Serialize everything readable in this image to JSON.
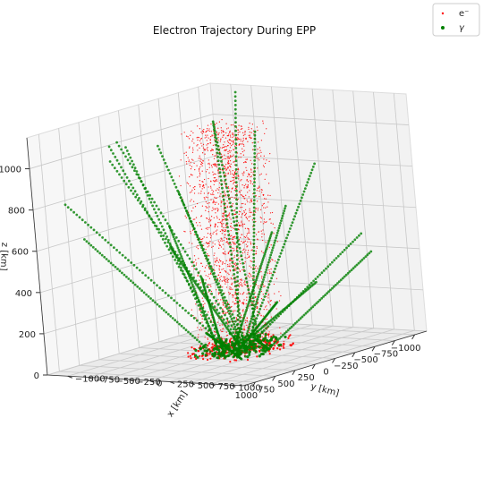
{
  "chart_data": {
    "type": "scatter",
    "projection": "3d",
    "title": "Electron Trajectory During EPP",
    "xlabel": "x [km]",
    "ylabel": "y [km]",
    "zlabel": "z [km]",
    "xlim": [
      -1250,
      1150
    ],
    "ylim": [
      -1150,
      1150
    ],
    "zlim": [
      0,
      1150
    ],
    "x_ticks": [
      -1000,
      -750,
      -500,
      -250,
      0,
      250,
      500,
      750,
      1000
    ],
    "y_ticks": [
      -1000,
      -750,
      -500,
      -250,
      0,
      250,
      500,
      750,
      1000
    ],
    "z_ticks": [
      0,
      200,
      400,
      600,
      800,
      1000
    ],
    "x_tick_labels": [
      "−1000",
      "−750",
      "−500",
      "−250",
      "0",
      "250",
      "500",
      "750",
      "1000"
    ],
    "y_tick_labels": [
      "−1000",
      "−750",
      "−500",
      "−250",
      "0",
      "250",
      "500",
      "750",
      "1000"
    ],
    "z_tick_labels": [
      "0",
      "200",
      "400",
      "600",
      "800",
      "1000"
    ],
    "grid": true,
    "legend_position": "top-right",
    "series": [
      {
        "name": "e⁻",
        "color": "#ff0000",
        "marker": "point",
        "cloud": {
          "x_range": [
            -300,
            300
          ],
          "y_range": [
            -300,
            300
          ],
          "z_range": [
            30,
            1100
          ],
          "n_points": 1800
        },
        "base_cluster": {
          "x_range": [
            -350,
            350
          ],
          "y_range": [
            -350,
            350
          ],
          "z_range": [
            0,
            60
          ],
          "n_points": 260
        }
      },
      {
        "name": "γ",
        "color": "#008000",
        "marker": "circle",
        "rays": [
          {
            "start": [
              -150,
              -120,
              0
            ],
            "end": [
              -900,
              -1100,
              1120
            ]
          },
          {
            "start": [
              -50,
              -200,
              0
            ],
            "end": [
              -500,
              -900,
              960
            ]
          },
          {
            "start": [
              100,
              -150,
              0
            ],
            "end": [
              -700,
              -600,
              1030
            ]
          },
          {
            "start": [
              -200,
              50,
              0
            ],
            "end": [
              -1000,
              200,
              1000
            ]
          },
          {
            "start": [
              50,
              100,
              0
            ],
            "end": [
              -1100,
              900,
              800
            ]
          },
          {
            "start": [
              -100,
              200,
              0
            ],
            "end": [
              -800,
              1000,
              650
            ]
          },
          {
            "start": [
              150,
              50,
              0
            ],
            "end": [
              -300,
              1100,
              1050
            ]
          },
          {
            "start": [
              0,
              0,
              0
            ],
            "end": [
              -100,
              -800,
              620
            ]
          },
          {
            "start": [
              -150,
              -50,
              0
            ],
            "end": [
              -500,
              -1000,
              460
            ]
          },
          {
            "start": [
              200,
              -100,
              0
            ],
            "end": [
              600,
              -1100,
              380
            ]
          },
          {
            "start": [
              100,
              150,
              0
            ],
            "end": [
              900,
              -700,
              520
            ]
          },
          {
            "start": [
              -50,
              100,
              0
            ],
            "end": [
              1100,
              100,
              380
            ]
          },
          {
            "start": [
              150,
              -200,
              0
            ],
            "end": [
              1000,
              800,
              180
            ]
          },
          {
            "start": [
              200,
              200,
              0
            ],
            "end": [
              700,
              1100,
              240
            ]
          },
          {
            "start": [
              -200,
              -200,
              0
            ],
            "end": [
              300,
              1050,
              640
            ]
          },
          {
            "start": [
              50,
              -50,
              0
            ],
            "end": [
              -200,
              600,
              1070
            ]
          },
          {
            "start": [
              -100,
              150,
              0
            ],
            "end": [
              -1050,
              -300,
              560
            ]
          },
          {
            "start": [
              100,
              0,
              0
            ],
            "end": [
              -600,
              700,
              1090
            ]
          },
          {
            "start": [
              -50,
              -100,
              0
            ],
            "end": [
              -1100,
              -500,
              700
            ]
          },
          {
            "start": [
              0,
              200,
              0
            ],
            "end": [
              500,
              900,
              480
            ]
          },
          {
            "start": [
              150,
              100,
              0
            ],
            "end": [
              -400,
              -300,
              1080
            ]
          },
          {
            "start": [
              -150,
              0,
              0
            ],
            "end": [
              -900,
              500,
              1040
            ]
          },
          {
            "start": [
              50,
              150,
              0
            ],
            "end": [
              800,
              300,
              300
            ]
          },
          {
            "start": [
              -100,
              -150,
              0
            ],
            "end": [
              200,
              -900,
              820
            ]
          }
        ]
      }
    ]
  }
}
